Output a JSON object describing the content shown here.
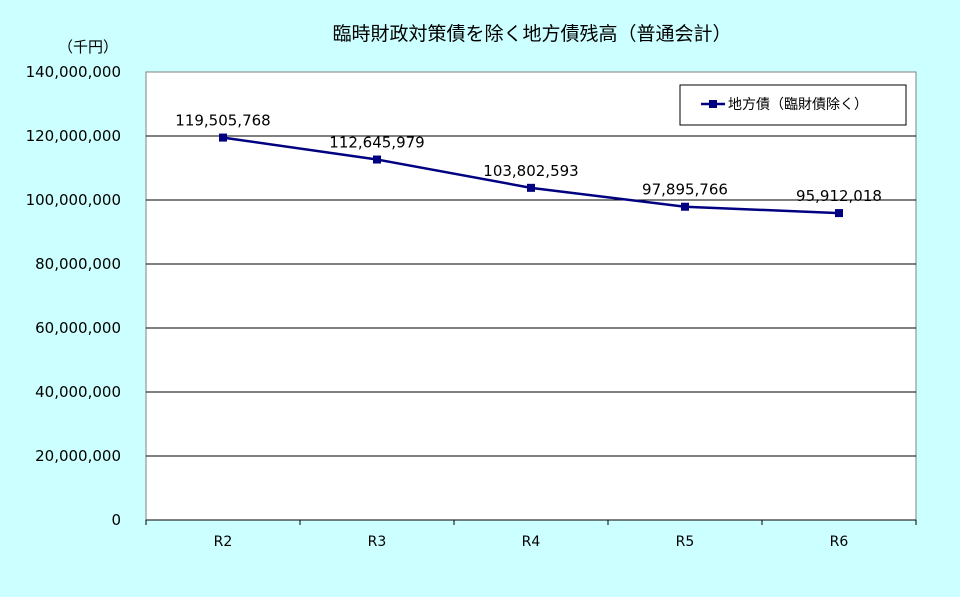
{
  "chart_data": {
    "type": "line",
    "title": "臨時財政対策債を除く地方債残高（普通会計）",
    "unit_label": "（千円）",
    "categories": [
      "R2",
      "R3",
      "R4",
      "R5",
      "R6"
    ],
    "series": [
      {
        "name": "地方債（臨財債除く）",
        "values": [
          119505768,
          112645979,
          103802593,
          97895766,
          95912018
        ],
        "labels": [
          "119,505,768",
          "112,645,979",
          "103,802,593",
          "97,895,766",
          "95,912,018"
        ]
      }
    ],
    "y_ticks": [
      "0",
      "20,000,000",
      "40,000,000",
      "60,000,000",
      "80,000,000",
      "100,000,000",
      "120,000,000",
      "140,000,000"
    ],
    "y_tick_values": [
      0,
      20000000,
      40000000,
      60000000,
      80000000,
      100000000,
      120000000,
      140000000
    ],
    "ylim": [
      0,
      140000000
    ],
    "grid": true,
    "legend_position": "top-right",
    "colors": {
      "background": "#CCFFFF",
      "plot_area": "#FFFFFF",
      "series": "#000080",
      "gridline": "#000000"
    }
  }
}
